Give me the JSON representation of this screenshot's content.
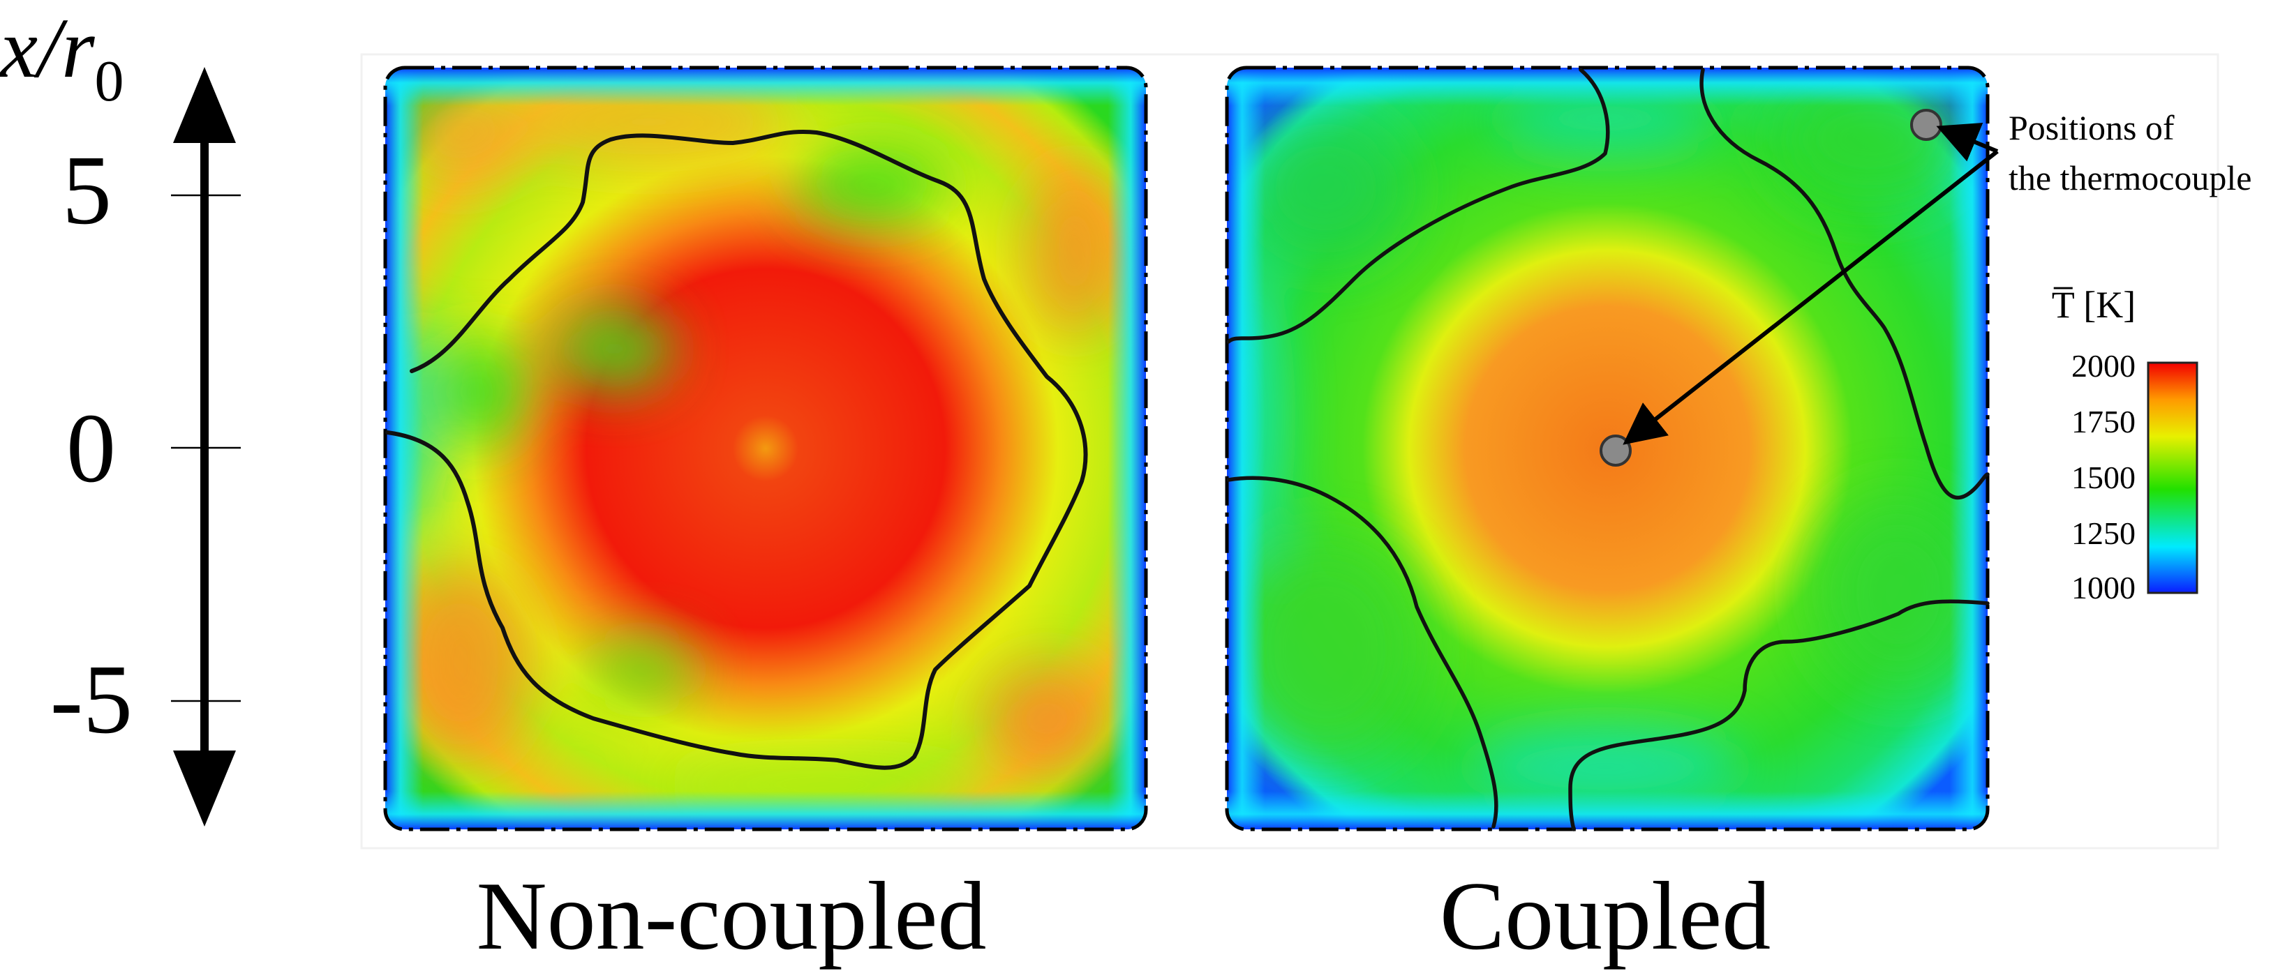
{
  "axis": {
    "label_x": "x",
    "label_slash": "/",
    "label_r": "r",
    "label_sub": "0",
    "ticks": [
      "5",
      "0",
      "-5"
    ]
  },
  "panels": [
    {
      "caption": "Non-coupled"
    },
    {
      "caption": "Coupled"
    }
  ],
  "annotation": {
    "line1": "Positions of",
    "line2": "the thermocouple"
  },
  "colorbar": {
    "title": "T̅ [K]",
    "ticks": [
      "2000",
      "1750",
      "1500",
      "1250",
      "1000"
    ],
    "colors": [
      "#0a1cff",
      "#00eaff",
      "#22e000",
      "#e8f000",
      "#ff9a00",
      "#f20000"
    ]
  }
}
